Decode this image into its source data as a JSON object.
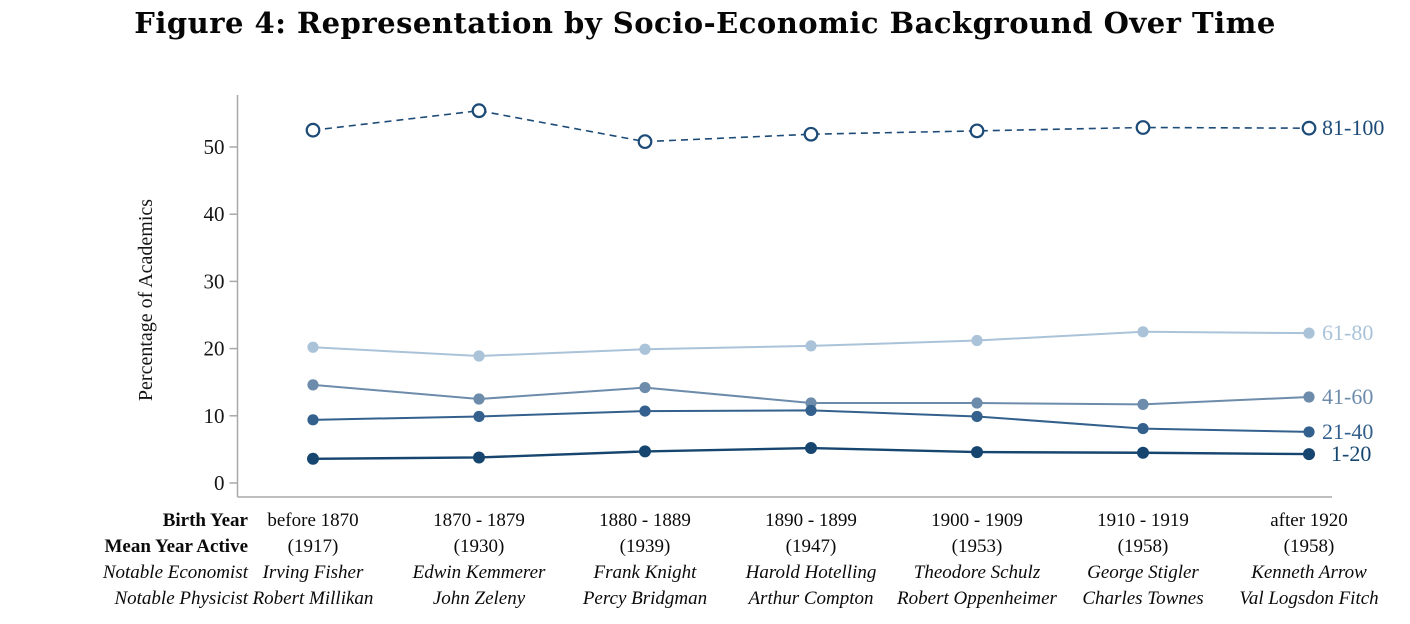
{
  "figure": {
    "title": "Figure 4: Representation by Socio-Economic Background Over Time"
  },
  "chart_data": {
    "type": "line",
    "title": "Representation by Socio-Economic Background Over Time",
    "xlabel": "",
    "ylabel": "Percentage of Academics",
    "ylim": [
      0,
      57
    ],
    "yticks": [
      0,
      10,
      20,
      30,
      40,
      50
    ],
    "grid": false,
    "legend_position": "right-end-labels",
    "categories": [
      "before 1870",
      "1870 - 1879",
      "1880 - 1889",
      "1890 - 1899",
      "1900 - 1909",
      "1910 - 1919",
      "after 1920"
    ],
    "series": [
      {
        "name": "81-100",
        "values": [
          52.5,
          55.4,
          50.8,
          51.9,
          52.4,
          52.9,
          52.8
        ],
        "color": "#1d4b77",
        "line_style": "dashed",
        "marker": "open-circle"
      },
      {
        "name": "61-80",
        "values": [
          20.2,
          18.9,
          19.9,
          20.4,
          21.2,
          22.5,
          22.3
        ],
        "color": "#aac3d9",
        "line_style": "solid",
        "marker": "dot"
      },
      {
        "name": "41-60",
        "values": [
          14.6,
          12.5,
          14.2,
          11.9,
          11.9,
          11.7,
          12.8
        ],
        "color": "#6d8cab",
        "line_style": "solid",
        "marker": "dot"
      },
      {
        "name": "21-40",
        "values": [
          9.4,
          9.9,
          10.7,
          10.8,
          9.9,
          8.1,
          7.6
        ],
        "color": "#33608c",
        "line_style": "solid",
        "marker": "dot"
      },
      {
        "name": "1-20",
        "values": [
          3.6,
          3.8,
          4.7,
          5.2,
          4.6,
          4.5,
          4.3
        ],
        "color": "#16466f",
        "line_style": "solid",
        "marker": "dot"
      }
    ]
  },
  "footer": {
    "row_headers": [
      {
        "label": "Birth Year",
        "style": "bold"
      },
      {
        "label": "Mean Year Active",
        "style": "bold"
      },
      {
        "label": "Notable Economist",
        "style": "italic"
      },
      {
        "label": "Notable Physicist",
        "style": "italic"
      }
    ],
    "columns": [
      {
        "birth_year": "before 1870",
        "mean_year_active": "(1917)",
        "notable_economist": "Irving Fisher",
        "notable_physicist": "Robert Millikan"
      },
      {
        "birth_year": "1870 - 1879",
        "mean_year_active": "(1930)",
        "notable_economist": "Edwin Kemmerer",
        "notable_physicist": "John Zeleny"
      },
      {
        "birth_year": "1880 - 1889",
        "mean_year_active": "(1939)",
        "notable_economist": "Frank Knight",
        "notable_physicist": "Percy Bridgman"
      },
      {
        "birth_year": "1890 - 1899",
        "mean_year_active": "(1947)",
        "notable_economist": "Harold Hotelling",
        "notable_physicist": "Arthur Compton"
      },
      {
        "birth_year": "1900 - 1909",
        "mean_year_active": "(1953)",
        "notable_economist": "Theodore Schulz",
        "notable_physicist": "Robert Oppenheimer"
      },
      {
        "birth_year": "1910 - 1919",
        "mean_year_active": "(1958)",
        "notable_economist": "George Stigler",
        "notable_physicist": "Charles Townes"
      },
      {
        "birth_year": "after 1920",
        "mean_year_active": "(1958)",
        "notable_economist": "Kenneth Arrow",
        "notable_physicist": "Val Logsdon Fitch"
      }
    ]
  },
  "colors": {
    "axis": "#a8a8a8",
    "text": "#151515",
    "background": "#ffffff"
  }
}
